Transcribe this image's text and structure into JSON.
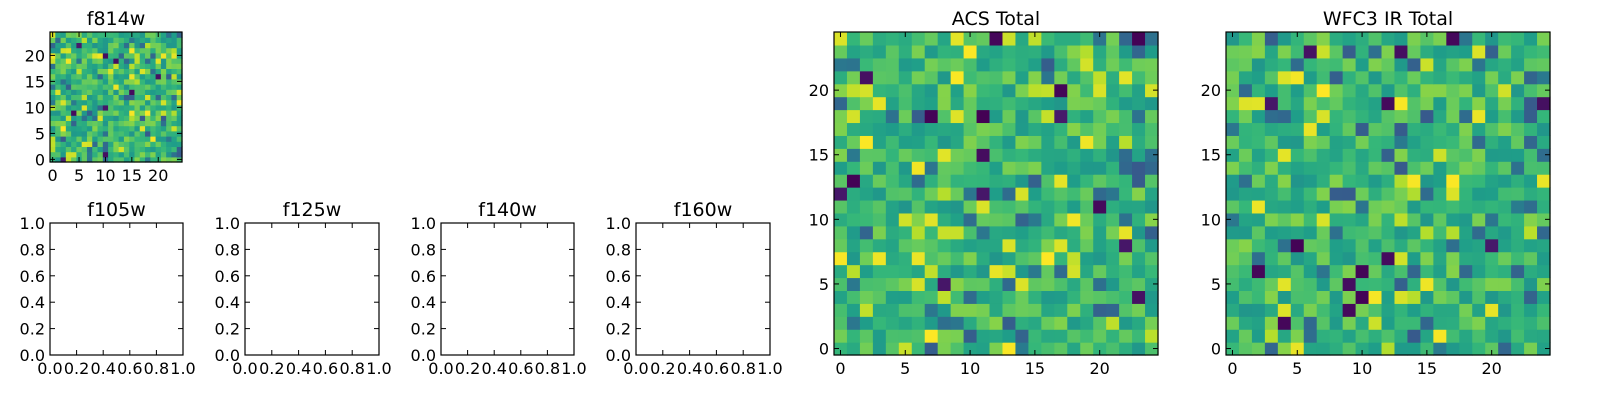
{
  "figure": {
    "colormap": "viridis",
    "frame_color": "#000000",
    "background": "#ffffff"
  },
  "chart_data": [
    {
      "id": "f814w",
      "type": "heatmap",
      "title": "f814w",
      "xlabel": "",
      "ylabel": "",
      "xlim": [
        -0.5,
        24.5
      ],
      "ylim": [
        -0.5,
        24.5
      ],
      "xticks": [
        0,
        5,
        10,
        15,
        20
      ],
      "yticks": [
        0,
        5,
        10,
        15,
        20
      ],
      "grid_size": [
        25,
        25
      ],
      "seed": 814,
      "value_range": [
        0,
        1
      ]
    },
    {
      "id": "f105w",
      "type": "heatmap",
      "title": "f105w",
      "empty": true,
      "xlim": [
        0,
        1
      ],
      "ylim": [
        0,
        1
      ],
      "xticks": [
        "0.0",
        "0.2",
        "0.4",
        "0.6",
        "0.8",
        "1.0"
      ],
      "yticks": [
        "0.0",
        "0.2",
        "0.4",
        "0.6",
        "0.8",
        "1.0"
      ]
    },
    {
      "id": "f125w",
      "type": "heatmap",
      "title": "f125w",
      "empty": true,
      "xlim": [
        0,
        1
      ],
      "ylim": [
        0,
        1
      ],
      "xticks": [
        "0.0",
        "0.2",
        "0.4",
        "0.6",
        "0.8",
        "1.0"
      ],
      "yticks": [
        "0.0",
        "0.2",
        "0.4",
        "0.6",
        "0.8",
        "1.0"
      ]
    },
    {
      "id": "f140w",
      "type": "heatmap",
      "title": "f140w",
      "empty": true,
      "xlim": [
        0,
        1
      ],
      "ylim": [
        0,
        1
      ],
      "xticks": [
        "0.0",
        "0.2",
        "0.4",
        "0.6",
        "0.8",
        "1.0"
      ],
      "yticks": [
        "0.0",
        "0.2",
        "0.4",
        "0.6",
        "0.8",
        "1.0"
      ]
    },
    {
      "id": "f160w",
      "type": "heatmap",
      "title": "f160w",
      "empty": true,
      "xlim": [
        0,
        1
      ],
      "ylim": [
        0,
        1
      ],
      "xticks": [
        "0.0",
        "0.2",
        "0.4",
        "0.6",
        "0.8",
        "1.0"
      ],
      "yticks": [
        "0.0",
        "0.2",
        "0.4",
        "0.6",
        "0.8",
        "1.0"
      ]
    },
    {
      "id": "acs-total",
      "type": "heatmap",
      "title": "ACS Total",
      "xlim": [
        -0.5,
        24.5
      ],
      "ylim": [
        -0.5,
        24.5
      ],
      "xticks": [
        0,
        5,
        10,
        15,
        20
      ],
      "yticks": [
        0,
        5,
        10,
        15,
        20
      ],
      "grid_size": [
        25,
        25
      ],
      "seed": 2113,
      "value_range": [
        0,
        1
      ]
    },
    {
      "id": "wfc3-ir-total",
      "type": "heatmap",
      "title": "WFC3 IR Total",
      "xlim": [
        -0.5,
        24.5
      ],
      "ylim": [
        -0.5,
        24.5
      ],
      "xticks": [
        0,
        5,
        10,
        15,
        20
      ],
      "yticks": [
        0,
        5,
        10,
        15,
        20
      ],
      "grid_size": [
        25,
        25
      ],
      "seed": 3160,
      "value_range": [
        0,
        1
      ]
    }
  ]
}
